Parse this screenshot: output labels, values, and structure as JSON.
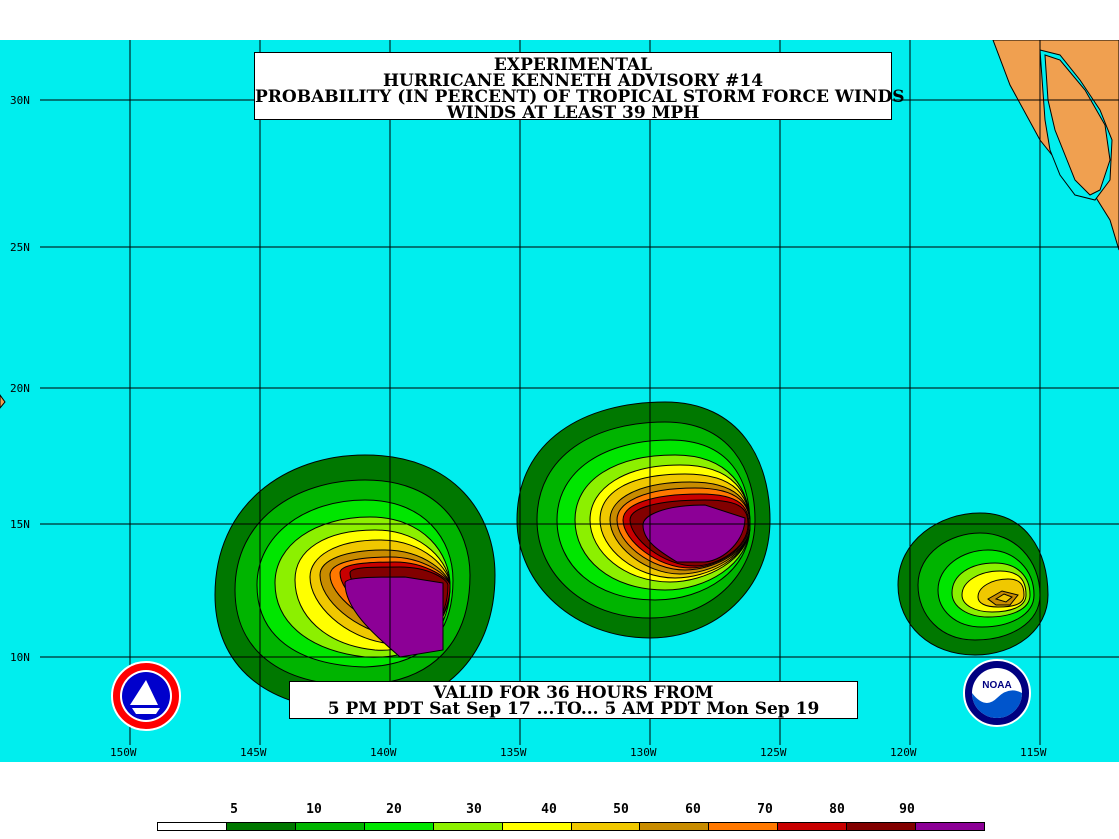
{
  "title": {
    "line1": "EXPERIMENTAL",
    "line2": "HURRICANE KENNETH ADVISORY #14",
    "line3": "PROBABILITY (IN PERCENT) OF TROPICAL STORM FORCE WINDS",
    "line4": "WINDS AT LEAST 39 MPH"
  },
  "valid": {
    "line1": "VALID FOR 36 HOURS FROM",
    "line2": "5 PM PDT Sat Sep 17 ...TO... 5 AM PDT Mon Sep 19"
  },
  "lat_labels": [
    "30N",
    "25N",
    "20N",
    "15N",
    "10N"
  ],
  "lon_labels": [
    "150W",
    "145W",
    "140W",
    "135W",
    "130W",
    "125W",
    "120W",
    "115W"
  ],
  "legend": {
    "labels": [
      "5",
      "10",
      "20",
      "30",
      "40",
      "50",
      "60",
      "70",
      "80",
      "90"
    ],
    "colors": [
      "#ffffff",
      "#007800",
      "#00b400",
      "#00e600",
      "#8cf000",
      "#ffff00",
      "#f0c800",
      "#c88c00",
      "#ff7800",
      "#c80000",
      "#820000",
      "#8c0096"
    ]
  },
  "colors": {
    "ocean": "#00eeee",
    "land": "#f0a050",
    "grid": "#000000"
  },
  "icons": {
    "left_logo": "nws-logo-icon",
    "right_logo": "noaa-logo-icon"
  }
}
